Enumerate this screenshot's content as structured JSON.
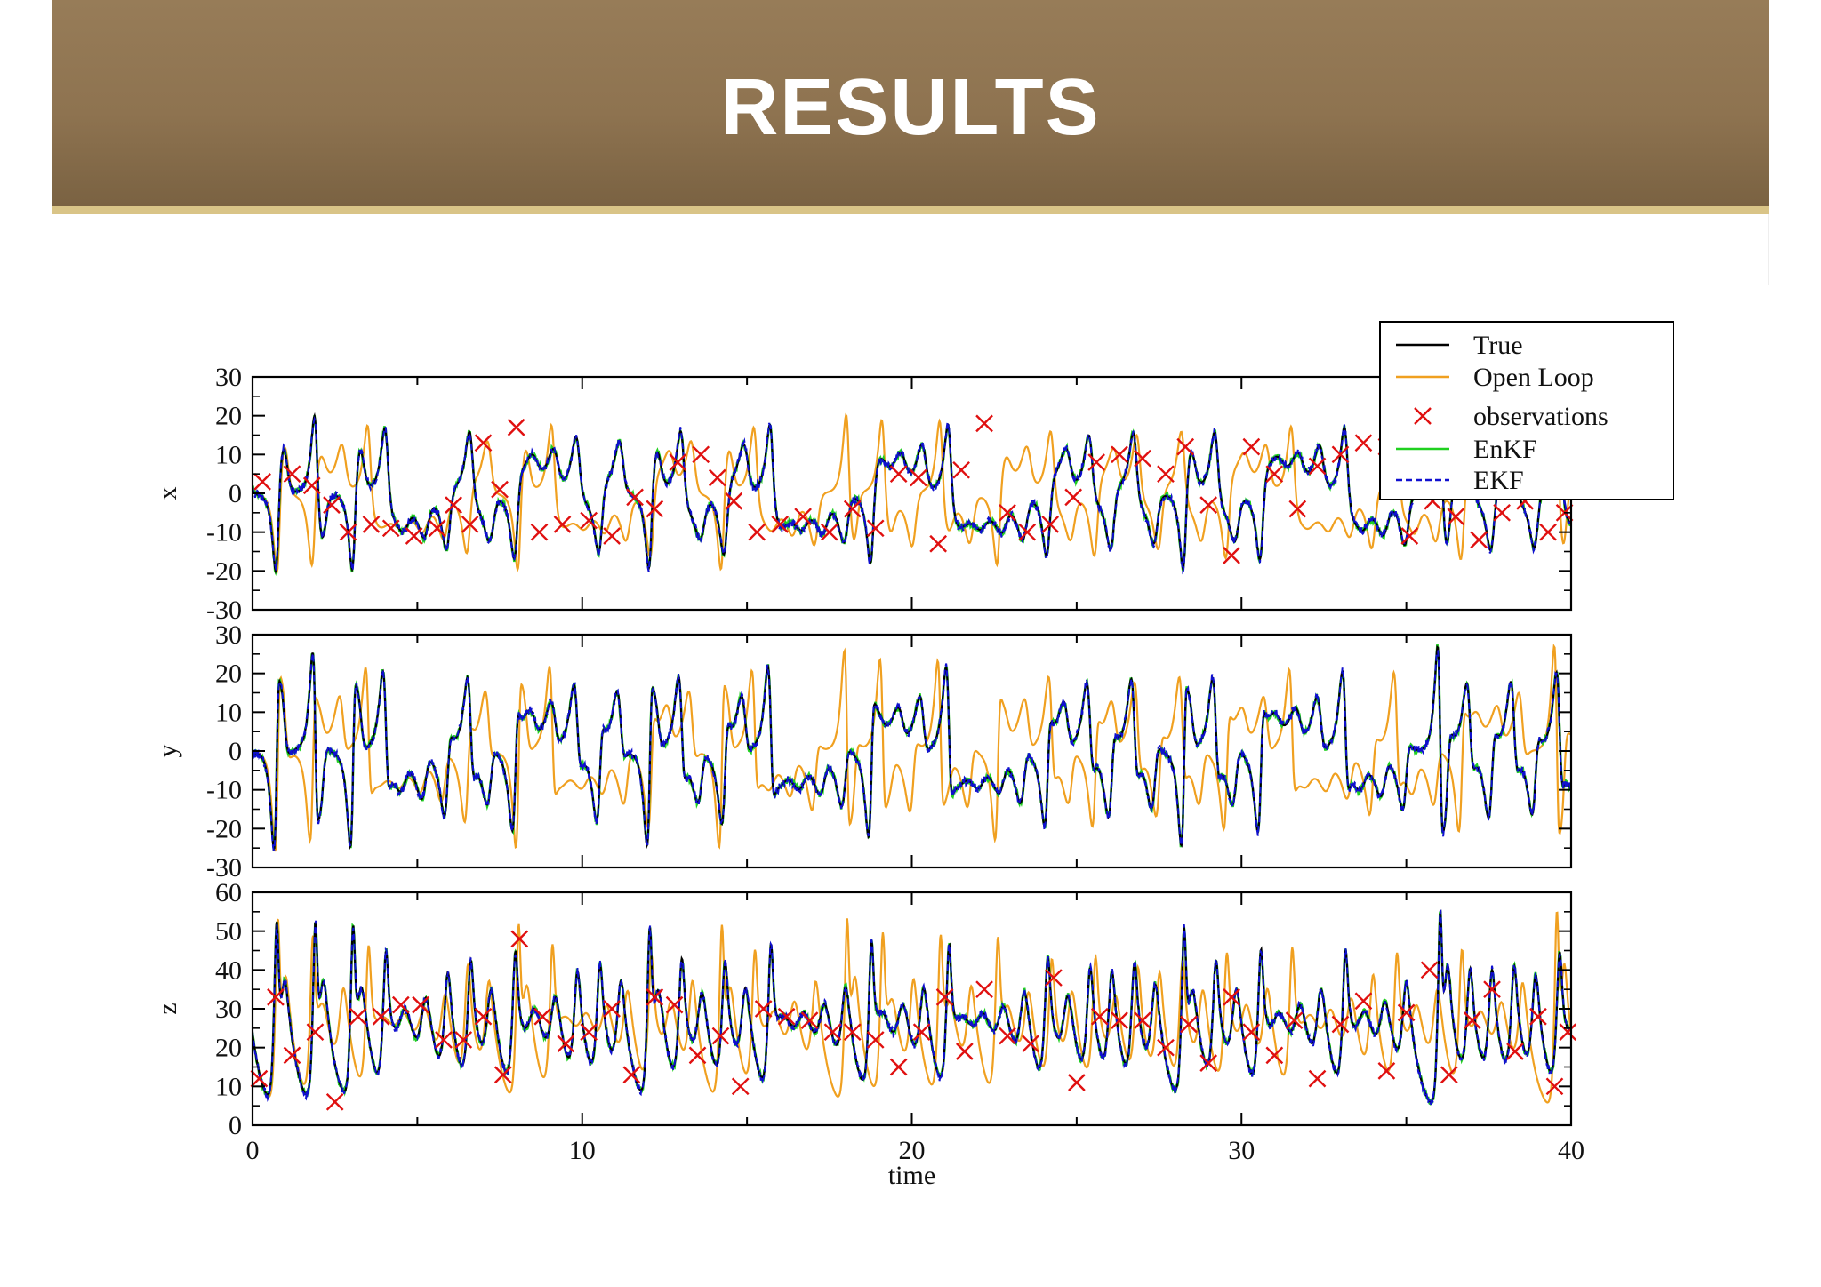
{
  "slide": {
    "title": "RESULTS"
  },
  "chart_data": {
    "type": "line",
    "x_label": "time",
    "xlim": [
      0,
      40
    ],
    "x_ticks": [
      0,
      10,
      20,
      30,
      40
    ],
    "legend": {
      "placement": "top-right",
      "entries": [
        {
          "name": "True",
          "color": "#000000",
          "style": "solid"
        },
        {
          "name": "Open Loop",
          "color": "#f0a020",
          "style": "solid"
        },
        {
          "name": "observations",
          "color": "#e01010",
          "style": "x-marker"
        },
        {
          "name": "EnKF",
          "color": "#20d020",
          "style": "solid"
        },
        {
          "name": "EKF",
          "color": "#1010d0",
          "style": "dashed"
        }
      ]
    },
    "panels": [
      {
        "ylabel": "x",
        "ylim": [
          -30,
          30
        ],
        "y_ticks": [
          "30",
          "20",
          "10",
          "0",
          "-10",
          "-20",
          "-30"
        ],
        "observations": [
          [
            0.3,
            3
          ],
          [
            1.2,
            5
          ],
          [
            1.8,
            2
          ],
          [
            2.4,
            -3
          ],
          [
            2.9,
            -10
          ],
          [
            3.6,
            -8
          ],
          [
            4.2,
            -9
          ],
          [
            4.9,
            -11
          ],
          [
            5.6,
            -9
          ],
          [
            6.1,
            -3
          ],
          [
            6.6,
            -8
          ],
          [
            7.0,
            13
          ],
          [
            7.5,
            1
          ],
          [
            8.0,
            17
          ],
          [
            8.7,
            -10
          ],
          [
            9.4,
            -8
          ],
          [
            10.2,
            -7
          ],
          [
            10.9,
            -11
          ],
          [
            11.6,
            -1
          ],
          [
            12.2,
            -4
          ],
          [
            12.9,
            8
          ],
          [
            13.6,
            10
          ],
          [
            14.1,
            4
          ],
          [
            14.6,
            -2
          ],
          [
            15.3,
            -10
          ],
          [
            16.0,
            -8
          ],
          [
            16.7,
            -6
          ],
          [
            17.5,
            -10
          ],
          [
            18.2,
            -4
          ],
          [
            18.9,
            -9
          ],
          [
            19.6,
            5
          ],
          [
            20.2,
            4
          ],
          [
            20.8,
            -13
          ],
          [
            21.5,
            6
          ],
          [
            22.2,
            18
          ],
          [
            22.9,
            -5
          ],
          [
            23.5,
            -10
          ],
          [
            24.2,
            -8
          ],
          [
            24.9,
            -1
          ],
          [
            25.6,
            8
          ],
          [
            26.3,
            10
          ],
          [
            27.0,
            9
          ],
          [
            27.7,
            5
          ],
          [
            28.3,
            12
          ],
          [
            29.0,
            -3
          ],
          [
            29.7,
            -16
          ],
          [
            30.3,
            12
          ],
          [
            31.0,
            5
          ],
          [
            31.7,
            -4
          ],
          [
            32.3,
            7
          ],
          [
            33.0,
            10
          ],
          [
            33.7,
            13
          ],
          [
            34.4,
            12
          ],
          [
            35.1,
            -11
          ],
          [
            35.8,
            -2
          ],
          [
            36.5,
            -6
          ],
          [
            37.2,
            -12
          ],
          [
            37.9,
            -5
          ],
          [
            38.6,
            -2
          ],
          [
            39.3,
            -10
          ],
          [
            39.8,
            -5
          ]
        ]
      },
      {
        "ylabel": "y",
        "ylim": [
          -30,
          30
        ],
        "y_ticks": [
          "30",
          "20",
          "10",
          "0",
          "-10",
          "-20",
          "-30"
        ],
        "observations": []
      },
      {
        "ylabel": "z",
        "ylim": [
          0,
          60
        ],
        "y_ticks": [
          "60",
          "50",
          "40",
          "30",
          "20",
          "10",
          "0"
        ],
        "observations": [
          [
            0.2,
            12
          ],
          [
            0.7,
            33
          ],
          [
            1.2,
            18
          ],
          [
            1.9,
            24
          ],
          [
            2.5,
            6
          ],
          [
            3.2,
            28
          ],
          [
            3.9,
            28
          ],
          [
            4.5,
            31
          ],
          [
            5.1,
            31
          ],
          [
            5.8,
            22
          ],
          [
            6.4,
            22
          ],
          [
            7.0,
            28
          ],
          [
            7.6,
            13
          ],
          [
            8.1,
            48
          ],
          [
            8.8,
            28
          ],
          [
            9.5,
            21
          ],
          [
            10.2,
            24
          ],
          [
            10.9,
            30
          ],
          [
            11.5,
            13
          ],
          [
            12.2,
            33
          ],
          [
            12.8,
            31
          ],
          [
            13.5,
            18
          ],
          [
            14.2,
            23
          ],
          [
            14.8,
            10
          ],
          [
            15.5,
            30
          ],
          [
            16.2,
            28
          ],
          [
            16.9,
            27
          ],
          [
            17.6,
            24
          ],
          [
            18.2,
            24
          ],
          [
            18.9,
            22
          ],
          [
            19.6,
            15
          ],
          [
            20.3,
            24
          ],
          [
            21.0,
            33
          ],
          [
            21.6,
            19
          ],
          [
            22.2,
            35
          ],
          [
            22.9,
            23
          ],
          [
            23.6,
            21
          ],
          [
            24.3,
            38
          ],
          [
            25.0,
            11
          ],
          [
            25.7,
            28
          ],
          [
            26.3,
            27
          ],
          [
            27.0,
            27
          ],
          [
            27.7,
            20
          ],
          [
            28.4,
            26
          ],
          [
            29.0,
            16
          ],
          [
            29.7,
            33
          ],
          [
            30.3,
            24
          ],
          [
            31.0,
            18
          ],
          [
            31.6,
            27
          ],
          [
            32.3,
            12
          ],
          [
            33.0,
            26
          ],
          [
            33.7,
            32
          ],
          [
            34.4,
            14
          ],
          [
            35.0,
            29
          ],
          [
            35.7,
            40
          ],
          [
            36.3,
            13
          ],
          [
            37.0,
            27
          ],
          [
            37.6,
            35
          ],
          [
            38.3,
            19
          ],
          [
            39.0,
            28
          ],
          [
            39.5,
            10
          ],
          [
            39.9,
            24
          ]
        ]
      }
    ]
  }
}
